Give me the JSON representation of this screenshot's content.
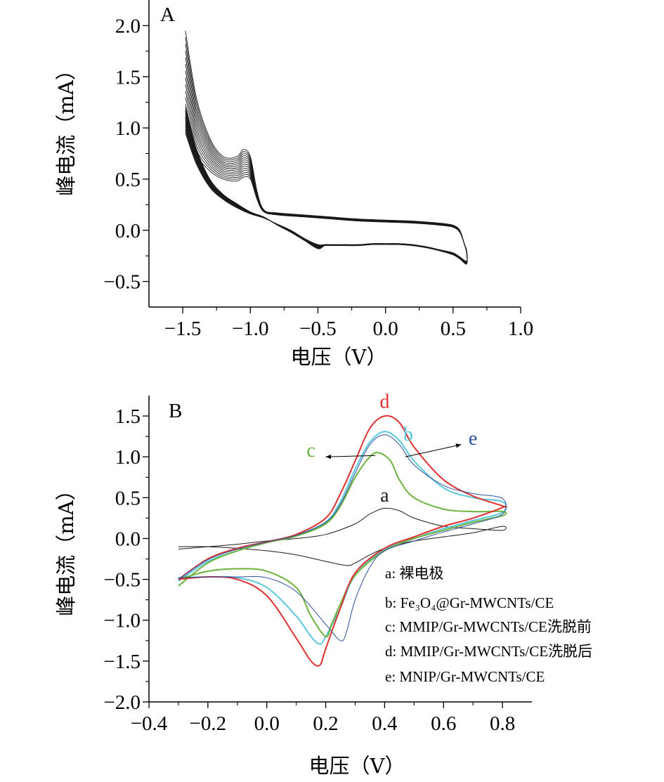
{
  "chart_data": [
    {
      "type": "line",
      "panel_label": "A",
      "xlabel": "电压（V）",
      "ylabel": "峰电流（mA）",
      "xlim": [
        -1.75,
        1.0
      ],
      "ylim": [
        -0.75,
        2.25
      ],
      "xticks": [
        -1.5,
        -1.0,
        -0.5,
        0.0,
        0.5,
        1.0
      ],
      "xtick_labels": [
        "−1.5",
        "−1.0",
        "−0.5",
        "0.0",
        "0.5",
        "1.0"
      ],
      "yticks": [
        -0.5,
        0.0,
        0.5,
        1.0,
        1.5,
        2.0
      ],
      "ytick_labels": [
        "−0.5",
        "0.0",
        "0.5",
        "1.0",
        "1.5",
        "2.0"
      ],
      "colors": {
        "line": "#1a1a1a"
      },
      "series_count": 14,
      "series_description_values": {
        "anodic_peak_first": 0.52,
        "anodic_peak_last": 0.79,
        "start_current_first": 1.1,
        "start_current_last": 1.95
      },
      "series": [
        {
          "x": [
            -1.48,
            -1.4,
            -1.3,
            -1.2,
            -1.1,
            -1.05,
            -1.0,
            -0.95,
            -0.9,
            -0.8,
            -0.6,
            -0.4,
            -0.2,
            0.0,
            0.2,
            0.4,
            0.5,
            0.55,
            0.58,
            0.6,
            0.6,
            0.55,
            0.5,
            0.4,
            0.3,
            0.2,
            0.1,
            0.0,
            -0.1,
            -0.2,
            -0.3,
            -0.4,
            -0.45,
            -0.5,
            -0.6,
            -0.7,
            -0.8,
            -0.9,
            -1.0,
            -1.1,
            -1.2,
            -1.3,
            -1.4,
            -1.48
          ],
          "y": [
            1.95,
            1.3,
            0.9,
            0.72,
            0.72,
            0.79,
            0.72,
            0.38,
            0.2,
            0.17,
            0.15,
            0.13,
            0.11,
            0.1,
            0.09,
            0.07,
            0.05,
            0.0,
            -0.12,
            -0.22,
            -0.33,
            -0.28,
            -0.24,
            -0.2,
            -0.17,
            -0.15,
            -0.14,
            -0.14,
            -0.14,
            -0.15,
            -0.15,
            -0.15,
            -0.15,
            -0.18,
            -0.1,
            -0.02,
            0.05,
            0.13,
            0.18,
            0.26,
            0.35,
            0.5,
            0.8,
            1.2
          ]
        },
        {
          "x": [
            -1.48,
            -1.4,
            -1.3,
            -1.2,
            -1.1,
            -1.05,
            -1.0,
            -0.95,
            -0.9,
            -0.8,
            -0.6,
            -0.4,
            -0.2,
            0.0,
            0.2,
            0.4,
            0.5,
            0.55,
            0.58,
            0.6,
            0.6,
            0.55,
            0.5,
            0.4,
            0.3,
            0.2,
            0.1,
            0.0,
            -0.1,
            -0.2,
            -0.3,
            -0.4,
            -0.45,
            -0.5,
            -0.6,
            -0.7,
            -0.8,
            -0.9,
            -1.0,
            -1.1,
            -1.2,
            -1.3,
            -1.4,
            -1.48
          ],
          "y": [
            1.1,
            0.75,
            0.58,
            0.5,
            0.48,
            0.52,
            0.5,
            0.3,
            0.18,
            0.15,
            0.13,
            0.11,
            0.09,
            0.08,
            0.07,
            0.05,
            0.03,
            -0.02,
            -0.12,
            -0.2,
            -0.3,
            -0.26,
            -0.22,
            -0.19,
            -0.16,
            -0.14,
            -0.13,
            -0.13,
            -0.13,
            -0.14,
            -0.14,
            -0.14,
            -0.14,
            -0.14,
            -0.08,
            0.0,
            0.06,
            0.12,
            0.16,
            0.22,
            0.3,
            0.42,
            0.65,
            0.95
          ]
        }
      ]
    },
    {
      "type": "line",
      "panel_label": "B",
      "xlabel": "电压（V）",
      "ylabel": "峰电流（mA）",
      "xlim": [
        -0.4,
        0.9
      ],
      "ylim": [
        -2.0,
        1.75
      ],
      "xticks": [
        -0.4,
        -0.2,
        0.0,
        0.2,
        0.4,
        0.6,
        0.8
      ],
      "xtick_labels": [
        "−0.4",
        "−0.2",
        "0.0",
        "0.2",
        "0.4",
        "0.6",
        "0.8"
      ],
      "yticks": [
        -2.0,
        -1.5,
        -1.0,
        -0.5,
        0.0,
        0.5,
        1.0,
        1.5
      ],
      "ytick_labels": [
        "−2.0",
        "−1.5",
        "−1.0",
        "−0.5",
        "0.0",
        "0.5",
        "1.0",
        "1.5"
      ],
      "legend_position": "bottom-right",
      "legend": [
        "a: 裸电极",
        "b: Fe₃O₄@Gr-MWCNTs/CE",
        "c: MMIP/Gr-MWCNTs/CE洗脱前",
        "d: MMIP/Gr-MWCNTs/CE洗脱后",
        "e: MNIP/Gr-MWCNTs/CE"
      ],
      "series": [
        {
          "name": "a",
          "color": "#1a1a1a",
          "x": [
            -0.3,
            -0.2,
            -0.1,
            0.0,
            0.1,
            0.2,
            0.3,
            0.35,
            0.4,
            0.45,
            0.5,
            0.6,
            0.7,
            0.8,
            0.8,
            0.7,
            0.6,
            0.5,
            0.45,
            0.4,
            0.35,
            0.3,
            0.27,
            0.2,
            0.1,
            0.0,
            -0.1,
            -0.2,
            -0.3
          ],
          "y": [
            -0.13,
            -0.1,
            -0.07,
            -0.03,
            0.0,
            0.05,
            0.18,
            0.3,
            0.37,
            0.34,
            0.25,
            0.15,
            0.12,
            0.1,
            0.15,
            0.07,
            0.02,
            -0.03,
            -0.07,
            -0.12,
            -0.2,
            -0.3,
            -0.33,
            -0.28,
            -0.2,
            -0.15,
            -0.12,
            -0.1,
            -0.1
          ]
        },
        {
          "name": "b",
          "color": "#5bc8dc",
          "x": [
            -0.3,
            -0.2,
            -0.1,
            0.0,
            0.1,
            0.2,
            0.25,
            0.3,
            0.35,
            0.4,
            0.45,
            0.5,
            0.6,
            0.7,
            0.8,
            0.8,
            0.7,
            0.6,
            0.5,
            0.4,
            0.3,
            0.25,
            0.2,
            0.18,
            0.15,
            0.1,
            0.0,
            -0.1,
            -0.2,
            -0.3
          ],
          "y": [
            -0.52,
            -0.28,
            -0.15,
            -0.05,
            0.04,
            0.2,
            0.45,
            0.85,
            1.18,
            1.31,
            1.2,
            0.95,
            0.62,
            0.5,
            0.45,
            0.32,
            0.22,
            0.12,
            0.0,
            -0.13,
            -0.45,
            -0.85,
            -1.2,
            -1.29,
            -1.2,
            -0.95,
            -0.6,
            -0.48,
            -0.47,
            -0.48
          ]
        },
        {
          "name": "c",
          "color": "#6cb33e",
          "x": [
            -0.3,
            -0.2,
            -0.1,
            0.0,
            0.1,
            0.2,
            0.25,
            0.3,
            0.35,
            0.38,
            0.42,
            0.45,
            0.5,
            0.6,
            0.7,
            0.8,
            0.8,
            0.7,
            0.6,
            0.5,
            0.4,
            0.3,
            0.25,
            0.22,
            0.2,
            0.15,
            0.1,
            0.0,
            -0.1,
            -0.2,
            -0.3
          ],
          "y": [
            -0.58,
            -0.3,
            -0.15,
            -0.05,
            0.03,
            0.18,
            0.4,
            0.75,
            1.0,
            1.05,
            0.95,
            0.72,
            0.5,
            0.36,
            0.33,
            0.33,
            0.28,
            0.2,
            0.1,
            0.0,
            -0.15,
            -0.45,
            -0.8,
            -1.05,
            -1.2,
            -0.95,
            -0.6,
            -0.4,
            -0.37,
            -0.4,
            -0.5
          ]
        },
        {
          "name": "d",
          "color": "#e03030",
          "x": [
            -0.3,
            -0.2,
            -0.1,
            0.0,
            0.1,
            0.2,
            0.25,
            0.3,
            0.35,
            0.4,
            0.45,
            0.5,
            0.6,
            0.7,
            0.8,
            0.8,
            0.7,
            0.6,
            0.5,
            0.4,
            0.3,
            0.25,
            0.2,
            0.18,
            0.15,
            0.1,
            0.0,
            -0.1,
            -0.2,
            -0.3
          ],
          "y": [
            -0.5,
            -0.25,
            -0.12,
            -0.04,
            0.05,
            0.25,
            0.55,
            0.95,
            1.35,
            1.5,
            1.42,
            1.12,
            0.72,
            0.52,
            0.4,
            0.38,
            0.25,
            0.15,
            0.02,
            -0.12,
            -0.42,
            -0.85,
            -1.35,
            -1.55,
            -1.5,
            -1.22,
            -0.7,
            -0.5,
            -0.47,
            -0.5
          ]
        },
        {
          "name": "e",
          "color": "#2a4fa0",
          "x": [
            -0.3,
            -0.2,
            -0.1,
            0.0,
            0.1,
            0.2,
            0.25,
            0.3,
            0.35,
            0.4,
            0.45,
            0.5,
            0.6,
            0.7,
            0.8,
            0.8,
            0.7,
            0.6,
            0.5,
            0.4,
            0.35,
            0.3,
            0.27,
            0.25,
            0.2,
            0.1,
            0.0,
            -0.1,
            -0.2,
            -0.3
          ],
          "y": [
            -0.5,
            -0.26,
            -0.13,
            -0.04,
            0.04,
            0.2,
            0.42,
            0.8,
            1.15,
            1.27,
            1.15,
            0.9,
            0.65,
            0.55,
            0.49,
            0.3,
            0.18,
            0.08,
            -0.03,
            -0.15,
            -0.35,
            -0.75,
            -1.15,
            -1.25,
            -1.05,
            -0.65,
            -0.48,
            -0.47,
            -0.47,
            -0.48
          ]
        }
      ],
      "curve_labels": [
        {
          "text": "a",
          "x": 0.4,
          "y": 0.45,
          "color": "#1a1a1a"
        },
        {
          "text": "b",
          "x": 0.48,
          "y": 1.2,
          "color": "#5bc8dc"
        },
        {
          "text": "c",
          "x": 0.15,
          "y": 1.0,
          "color": "#6cb33e"
        },
        {
          "text": "d",
          "x": 0.4,
          "y": 1.6,
          "color": "#e03030"
        },
        {
          "text": "e",
          "x": 0.7,
          "y": 1.15,
          "color": "#2a4fa0"
        }
      ]
    }
  ]
}
